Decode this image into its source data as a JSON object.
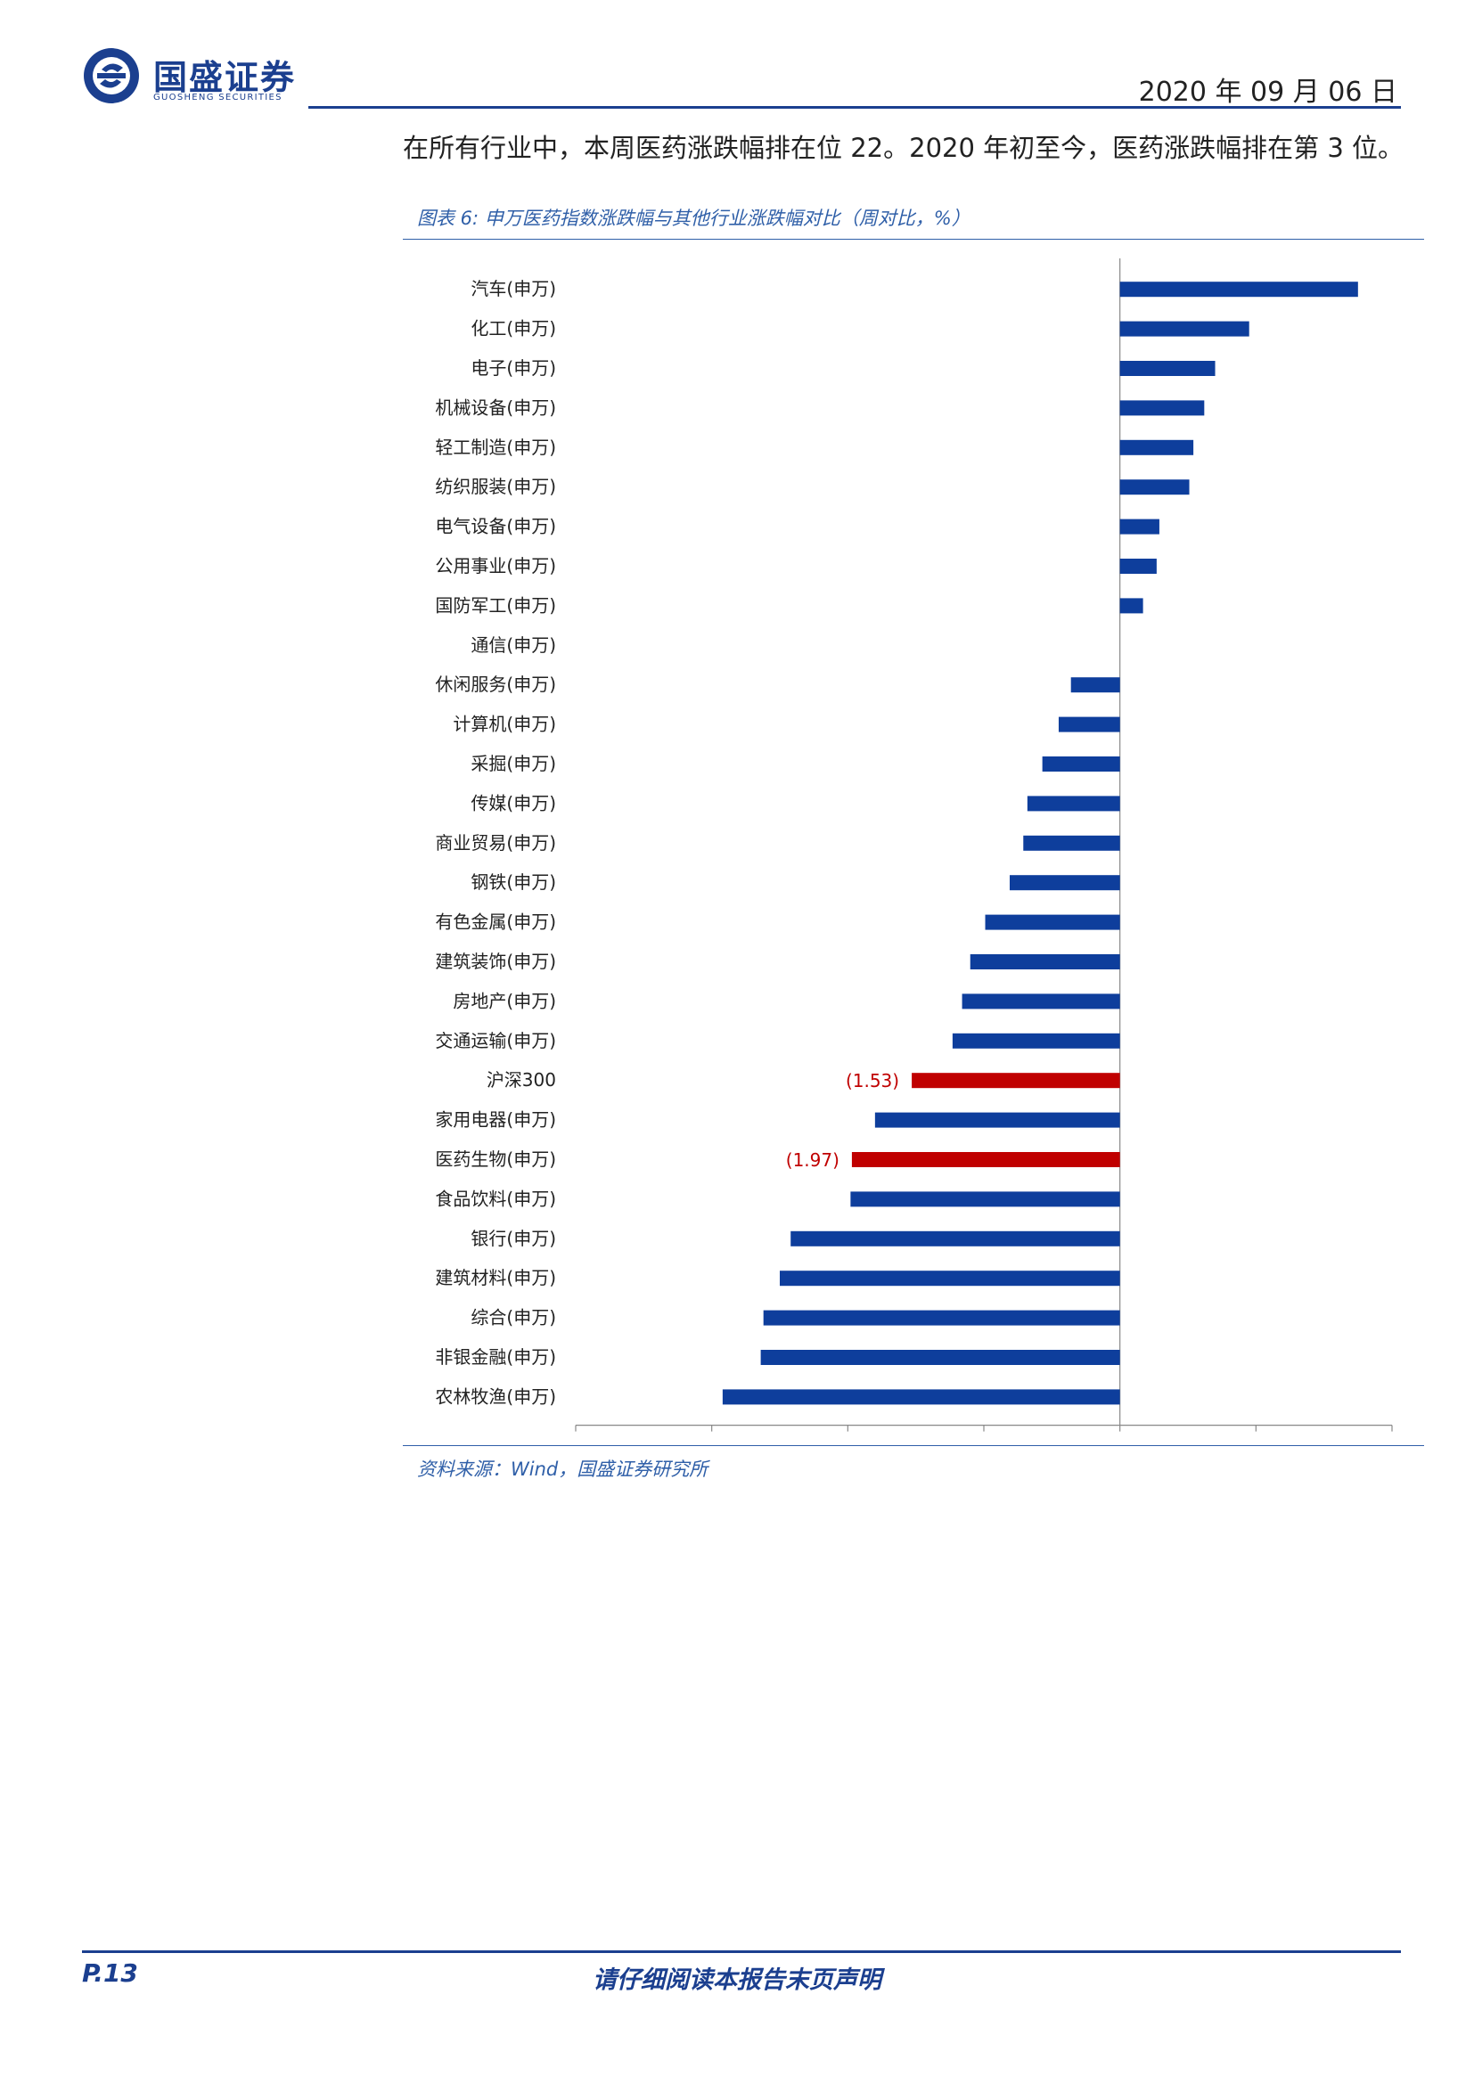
{
  "header": {
    "brand_name": "国盛证券",
    "brand_sub": "GUOSHENG SECURITIES",
    "date": "2020 年 09 月 06 日"
  },
  "intro_text": "在所有行业中，本周医药涨跌幅排在位 22。2020 年初至今，医药涨跌幅排在第 3 位。",
  "figure": {
    "title": "图表 6:  申万医药指数涨跌幅与其他行业涨跌幅对比（周对比，%）",
    "source": "资料来源：Wind，国盛证券研究所"
  },
  "footer": {
    "page": "P.13",
    "disclaimer": "请仔细阅读本报告末页声明"
  },
  "colors": {
    "brand_blue": "#1b3f8f",
    "bar_blue": "#0e3e9c",
    "highlight_red": "#c00000"
  },
  "chart_data": {
    "type": "bar",
    "orientation": "horizontal",
    "categories": [
      "汽车(申万)",
      "化工(申万)",
      "电子(申万)",
      "机械设备(申万)",
      "轻工制造(申万)",
      "纺织服装(申万)",
      "电气设备(申万)",
      "公用事业(申万)",
      "国防军工(申万)",
      "通信(申万)",
      "休闲服务(申万)",
      "计算机(申万)",
      "采掘(申万)",
      "传媒(申万)",
      "商业贸易(申万)",
      "钢铁(申万)",
      "有色金属(申万)",
      "建筑装饰(申万)",
      "房地产(申万)",
      "交通运输(申万)",
      "沪深300",
      "家用电器(申万)",
      "医药生物(申万)",
      "食品饮料(申万)",
      "银行(申万)",
      "建筑材料(申万)",
      "综合(申万)",
      "非银金融(申万)",
      "农林牧渔(申万)"
    ],
    "values": [
      1.75,
      0.95,
      0.7,
      0.62,
      0.54,
      0.51,
      0.29,
      0.27,
      0.17,
      0.0,
      -0.36,
      -0.45,
      -0.57,
      -0.68,
      -0.71,
      -0.81,
      -0.99,
      -1.1,
      -1.16,
      -1.23,
      -1.53,
      -1.8,
      -1.97,
      -1.98,
      -2.42,
      -2.5,
      -2.62,
      -2.64,
      -2.92
    ],
    "highlight": [
      "沪深300",
      "医药生物(申万)"
    ],
    "data_labels": {
      "沪深300": "(1.53)",
      "医药生物(申万)": "(1.97)"
    },
    "xlim": [
      -4,
      2
    ],
    "xticks": [
      "-4",
      "-3",
      "-2",
      "-1",
      "0",
      "1",
      "2"
    ],
    "xlabel": "",
    "ylabel": "",
    "grid": false,
    "legend": "none"
  }
}
